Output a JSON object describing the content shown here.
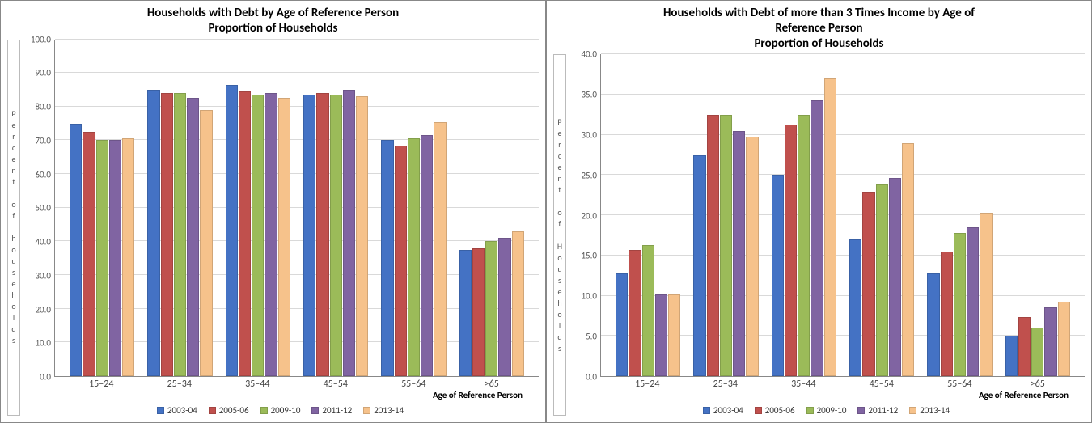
{
  "series": [
    {
      "name": "2003-04",
      "color": "#4472c4"
    },
    {
      "name": "2005-06",
      "color": "#c0504d"
    },
    {
      "name": "2009-10",
      "color": "#9bbb59"
    },
    {
      "name": "2011-12",
      "color": "#8064a2"
    },
    {
      "name": "2013-14",
      "color": "#f6c28b"
    }
  ],
  "categories": [
    "15–24",
    "25–34",
    "35–44",
    "45–54",
    "55–64",
    ">65"
  ],
  "chart1": {
    "title": "Households with Debt by Age of Reference Person\nProportion of Households",
    "ylabel": "Percent of households",
    "xlabel": "Age of Reference Person",
    "ylim": [
      0,
      100
    ],
    "ystep": 10,
    "tick_decimals": 1,
    "grid_color": "#d9d9d9",
    "background_color": "#ffffff",
    "axis_color": "#888888",
    "title_fontsize": 15,
    "tick_fontsize": 11,
    "data": [
      [
        75.0,
        72.5,
        70.0,
        70.0,
        70.5
      ],
      [
        85.0,
        84.0,
        84.0,
        82.5,
        79.0
      ],
      [
        86.5,
        84.5,
        83.5,
        84.0,
        82.5
      ],
      [
        83.5,
        84.0,
        83.5,
        85.0,
        83.0
      ],
      [
        70.0,
        68.5,
        70.5,
        71.5,
        75.5
      ],
      [
        37.5,
        38.0,
        40.0,
        41.0,
        43.0
      ]
    ]
  },
  "chart2": {
    "title": "Households with Debt of more than 3 Times Income by Age of\nReference Person\nProportion of Households",
    "ylabel": "Percent of Households",
    "xlabel": "Age of Reference Person",
    "ylim": [
      0,
      40
    ],
    "ystep": 5,
    "tick_decimals": 1,
    "grid_color": "#d9d9d9",
    "background_color": "#ffffff",
    "axis_color": "#888888",
    "title_fontsize": 15,
    "tick_fontsize": 11,
    "data": [
      [
        12.8,
        15.7,
        16.3,
        10.2,
        10.2
      ],
      [
        27.5,
        32.5,
        32.5,
        30.5,
        29.8
      ],
      [
        25.0,
        31.3,
        32.5,
        34.3,
        37.0
      ],
      [
        17.0,
        22.8,
        23.8,
        24.6,
        29.0
      ],
      [
        12.8,
        15.5,
        17.8,
        18.5,
        20.3
      ],
      [
        5.0,
        7.3,
        6.0,
        8.5,
        9.3
      ]
    ]
  }
}
